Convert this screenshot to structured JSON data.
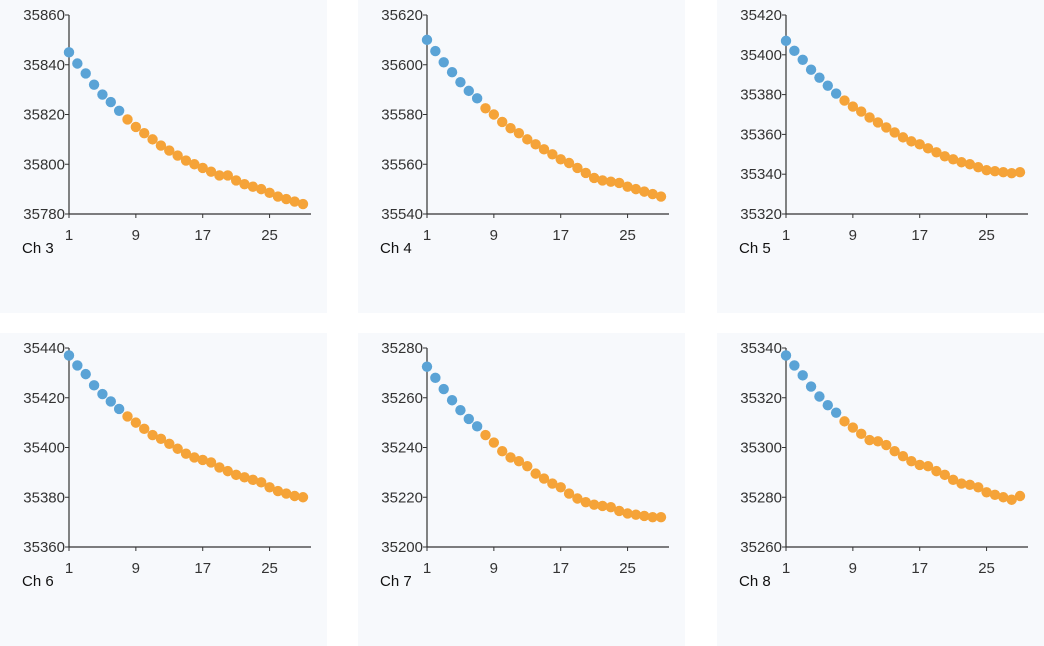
{
  "colors": {
    "early": "#5aa3d6",
    "late": "#f5a338",
    "axis": "#333333",
    "panel": "#f7f9fc"
  },
  "chart_data": [
    {
      "type": "scatter",
      "label": "Ch 3",
      "x_ticks": [
        1,
        9,
        17,
        25
      ],
      "ylim": [
        35780,
        35860
      ],
      "y_ticks": [
        35780,
        35800,
        35820,
        35840,
        35860
      ],
      "split_at": 8,
      "x": [
        1,
        2,
        3,
        4,
        5,
        6,
        7,
        8,
        9,
        10,
        11,
        12,
        13,
        14,
        15,
        16,
        17,
        18,
        19,
        20,
        21,
        22,
        23,
        24,
        25,
        26,
        27,
        28,
        29
      ],
      "values": [
        35845,
        35840.5,
        35836.5,
        35832,
        35828,
        35825,
        35821.5,
        35818,
        35815,
        35812.5,
        35810,
        35807.5,
        35805.5,
        35803.5,
        35801.5,
        35800,
        35798.5,
        35797,
        35795.5,
        35795.5,
        35793.5,
        35792,
        35791,
        35790,
        35788.5,
        35787,
        35786,
        35785,
        35784
      ]
    },
    {
      "type": "scatter",
      "label": "Ch 4",
      "x_ticks": [
        1,
        9,
        17,
        25
      ],
      "ylim": [
        35540,
        35620
      ],
      "y_ticks": [
        35540,
        35560,
        35580,
        35600,
        35620
      ],
      "split_at": 8,
      "x": [
        1,
        2,
        3,
        4,
        5,
        6,
        7,
        8,
        9,
        10,
        11,
        12,
        13,
        14,
        15,
        16,
        17,
        18,
        19,
        20,
        21,
        22,
        23,
        24,
        25,
        26,
        27,
        28,
        29
      ],
      "values": [
        35610,
        35605.5,
        35601,
        35597,
        35593,
        35589.5,
        35586.5,
        35582.5,
        35580,
        35577,
        35574.5,
        35572.5,
        35570,
        35568,
        35566,
        35564,
        35562,
        35560.5,
        35558.5,
        35556.5,
        35554.5,
        35553.5,
        35553,
        35552.5,
        35551,
        35550,
        35549,
        35548,
        35547
      ]
    },
    {
      "type": "scatter",
      "label": "Ch 5",
      "x_ticks": [
        1,
        9,
        17,
        25
      ],
      "ylim": [
        35320,
        35420
      ],
      "y_ticks": [
        35320,
        35340,
        35360,
        35380,
        35400,
        35420
      ],
      "split_at": 8,
      "x": [
        1,
        2,
        3,
        4,
        5,
        6,
        7,
        8,
        9,
        10,
        11,
        12,
        13,
        14,
        15,
        16,
        17,
        18,
        19,
        20,
        21,
        22,
        23,
        24,
        25,
        26,
        27,
        28,
        29
      ],
      "values": [
        35407,
        35402,
        35397.5,
        35392.5,
        35388.5,
        35384.5,
        35380.5,
        35377,
        35374,
        35371.5,
        35368.5,
        35366,
        35363.5,
        35361,
        35358.5,
        35356.5,
        35355,
        35353,
        35351,
        35349,
        35347.5,
        35346,
        35345,
        35343.5,
        35342,
        35341.5,
        35341,
        35340.5,
        35341
      ]
    },
    {
      "type": "scatter",
      "label": "Ch 6",
      "x_ticks": [
        1,
        9,
        17,
        25
      ],
      "ylim": [
        35360,
        35440
      ],
      "y_ticks": [
        35360,
        35380,
        35400,
        35420,
        35440
      ],
      "split_at": 8,
      "x": [
        1,
        2,
        3,
        4,
        5,
        6,
        7,
        8,
        9,
        10,
        11,
        12,
        13,
        14,
        15,
        16,
        17,
        18,
        19,
        20,
        21,
        22,
        23,
        24,
        25,
        26,
        27,
        28,
        29
      ],
      "values": [
        35437,
        35433,
        35429.5,
        35425,
        35421.5,
        35418.5,
        35415.5,
        35412.5,
        35410,
        35407.5,
        35405,
        35403.5,
        35401.5,
        35399.5,
        35397.5,
        35396,
        35395,
        35394,
        35392,
        35390.5,
        35389,
        35388,
        35387,
        35386,
        35384,
        35382.5,
        35381.5,
        35380.5,
        35380
      ]
    },
    {
      "type": "scatter",
      "label": "Ch 7",
      "x_ticks": [
        1,
        9,
        17,
        25
      ],
      "ylim": [
        35200,
        35280
      ],
      "y_ticks": [
        35200,
        35220,
        35240,
        35260,
        35280
      ],
      "split_at": 8,
      "x": [
        1,
        2,
        3,
        4,
        5,
        6,
        7,
        8,
        9,
        10,
        11,
        12,
        13,
        14,
        15,
        16,
        17,
        18,
        19,
        20,
        21,
        22,
        23,
        24,
        25,
        26,
        27,
        28,
        29
      ],
      "values": [
        35272.5,
        35268,
        35263.5,
        35259,
        35255,
        35251.5,
        35248.5,
        35245,
        35242,
        35238.5,
        35236,
        35234.5,
        35232.5,
        35229.5,
        35227.5,
        35225.5,
        35224,
        35221.5,
        35219.5,
        35218,
        35217,
        35216.5,
        35216,
        35214.5,
        35213.5,
        35213,
        35212.5,
        35212,
        35212
      ]
    },
    {
      "type": "scatter",
      "label": "Ch 8",
      "x_ticks": [
        1,
        9,
        17,
        25
      ],
      "ylim": [
        35260,
        35340
      ],
      "y_ticks": [
        35260,
        35280,
        35300,
        35320,
        35340
      ],
      "split_at": 8,
      "x": [
        1,
        2,
        3,
        4,
        5,
        6,
        7,
        8,
        9,
        10,
        11,
        12,
        13,
        14,
        15,
        16,
        17,
        18,
        19,
        20,
        21,
        22,
        23,
        24,
        25,
        26,
        27,
        28,
        29
      ],
      "values": [
        35337,
        35333,
        35329,
        35324.5,
        35320.5,
        35317,
        35314,
        35310.5,
        35308,
        35305.5,
        35303,
        35302.5,
        35301,
        35298.5,
        35296.5,
        35294.5,
        35293,
        35292.5,
        35290.5,
        35289,
        35287,
        35285.5,
        35285,
        35284,
        35282,
        35281,
        35280,
        35279,
        35280.5
      ]
    }
  ]
}
